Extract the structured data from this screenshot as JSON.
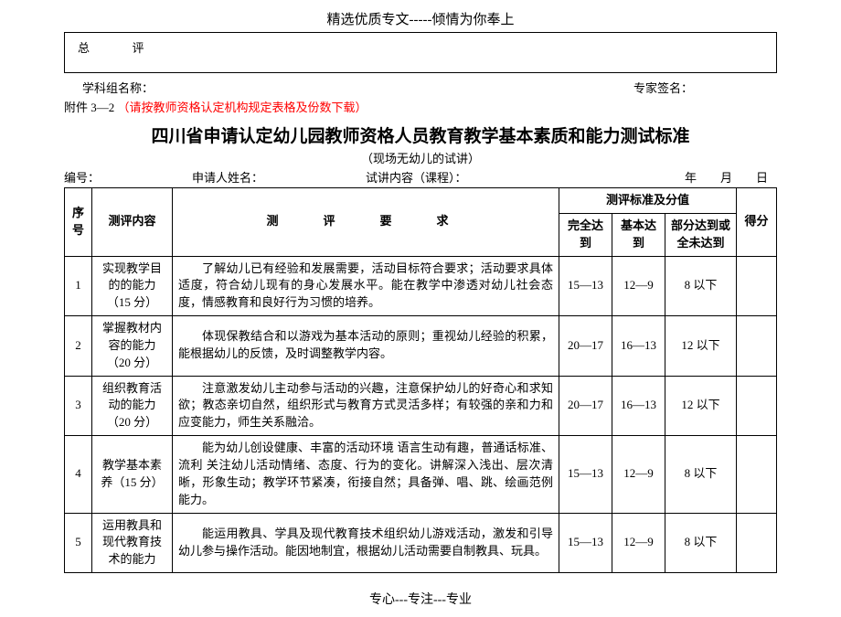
{
  "header": "精选优质专文-----倾情为你奉上",
  "topbox": {
    "left": "总",
    "right": "评"
  },
  "info": {
    "group_label": "学科组名称：",
    "expert_label": "专家签名："
  },
  "attachment": {
    "prefix": "附件 3—2",
    "note": "（请按教师资格认定机构规定表格及份数下载）"
  },
  "title": "四川省申请认定幼儿园教师资格人员教育教学基本素质和能力测试标准",
  "subtitle": "（现场无幼儿的试讲）",
  "meta": {
    "id_label": "编号：",
    "name_label": "申请人姓名：",
    "course_label": "试讲内容（课程）：",
    "date_label": "年　　月　　日"
  },
  "thead": {
    "seq": "序号",
    "topic": "测评内容",
    "req": "测　评　要　求",
    "std_group": "测评标准及分值",
    "s1": "完全达到",
    "s2": "基本达到",
    "s3": "部分达到或全未达到",
    "score": "得分"
  },
  "rows": [
    {
      "n": "1",
      "topic": "实现教学目的的能力（15 分）",
      "req": "　　了解幼儿已有经验和发展需要，活动目标符合要求；活动要求具体适度，符合幼儿现有的身心发展水平。能在教学中渗透对幼儿社会态度，情感教育和良好行为习惯的培养。",
      "s1": "15—13",
      "s2": "12—9",
      "s3": "8 以下"
    },
    {
      "n": "2",
      "topic": "掌握教材内容的能力（20 分）",
      "req": "　　体现保教结合和以游戏为基本活动的原则；重视幼儿经验的积累，能根据幼儿的反馈，及时调整教学内容。",
      "s1": "20—17",
      "s2": "16—13",
      "s3": "12 以下"
    },
    {
      "n": "3",
      "topic": "组织教育活动的能力（20 分）",
      "req": "　　注意激发幼儿主动参与活动的兴趣，注意保护幼儿的好奇心和求知欲；教态亲切自然，组织形式与教育方式灵活多样；有较强的亲和力和应变能力，师生关系融洽。",
      "s1": "20—17",
      "s2": "16—13",
      "s3": "12 以下"
    },
    {
      "n": "4",
      "topic": "教学基本素　养（15 分）",
      "req": "　　能为幼儿创设健康、丰富的活动环境 语言生动有趣，普通话标准、流利 关注幼儿活动情绪、态度、行为的变化。讲解深入浅出、层次清晰，形象生动；教学环节紧凑，衔接自然；具备弹、唱、跳、绘画范例能力。",
      "s1": "15—13",
      "s2": "12—9",
      "s3": "8 以下"
    },
    {
      "n": "5",
      "topic": "运用教具和现代教育技术的能力",
      "req": "　　能运用教具、学具及现代教育技术组织幼儿游戏活动，激发和引导幼儿参与操作活动。能因地制宜，根据幼儿活动需要自制教具、玩具。",
      "s1": "15—13",
      "s2": "12—9",
      "s3": "8 以下"
    }
  ],
  "footer": "专心---专注---专业"
}
